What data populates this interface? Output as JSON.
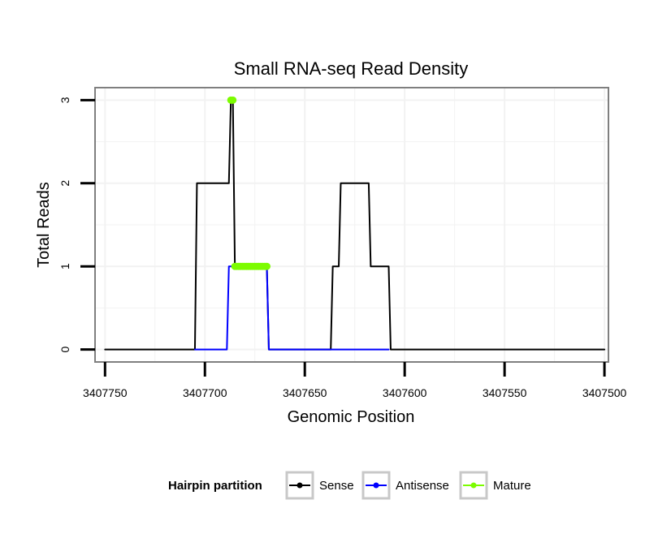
{
  "chart_data": {
    "type": "line",
    "title": "Small RNA-seq Read Density",
    "xlabel": "Genomic Position",
    "ylabel": "Total Reads",
    "x_reversed": true,
    "xlim": [
      3407755,
      3407498
    ],
    "ylim": [
      -0.15,
      3.15
    ],
    "x_ticks": [
      3407750,
      3407700,
      3407650,
      3407600,
      3407550,
      3407500
    ],
    "x_tick_labels": [
      "3407750",
      "3407700",
      "3407650",
      "3407600",
      "3407550",
      "3407500"
    ],
    "y_ticks": [
      0,
      1,
      2,
      3
    ],
    "y_tick_labels": [
      "0",
      "1",
      "2",
      "3"
    ],
    "grid": true,
    "series": [
      {
        "name": "Sense",
        "color": "#000000",
        "x": [
          3407750,
          3407705,
          3407704,
          3407688,
          3407687,
          3407686,
          3407685,
          3407684,
          3407683,
          3407669,
          3407668,
          3407637,
          3407636,
          3407633,
          3407632,
          3407618,
          3407617,
          3407608,
          3407607,
          3407500
        ],
        "values": [
          0,
          0,
          2,
          2,
          3,
          3,
          1,
          1,
          1,
          1,
          0,
          0,
          1,
          1,
          2,
          2,
          1,
          1,
          0,
          0
        ]
      },
      {
        "name": "Antisense",
        "color": "#0000ff",
        "x": [
          3407705,
          3407689,
          3407688,
          3407669,
          3407668,
          3407637,
          3407637,
          3407608
        ],
        "values": [
          0,
          0,
          1,
          1,
          0,
          0,
          0,
          0
        ]
      },
      {
        "name": "Mature",
        "color": "#7cfc00",
        "x": [
          3407687,
          3407686,
          3407685,
          3407684,
          3407683,
          3407682,
          3407681,
          3407680,
          3407679,
          3407678,
          3407677,
          3407676,
          3407675,
          3407674,
          3407673,
          3407672,
          3407671,
          3407670,
          3407669
        ],
        "values": [
          3,
          3,
          1,
          1,
          1,
          1,
          1,
          1,
          1,
          1,
          1,
          1,
          1,
          1,
          1,
          1,
          1,
          1,
          1
        ],
        "segments": [
          [
            0,
            1
          ],
          [
            2,
            18
          ]
        ]
      }
    ],
    "legend": {
      "title": "Hairpin partition",
      "placement": "bottom",
      "entries": [
        "Sense",
        "Antisense",
        "Mature"
      ]
    }
  }
}
